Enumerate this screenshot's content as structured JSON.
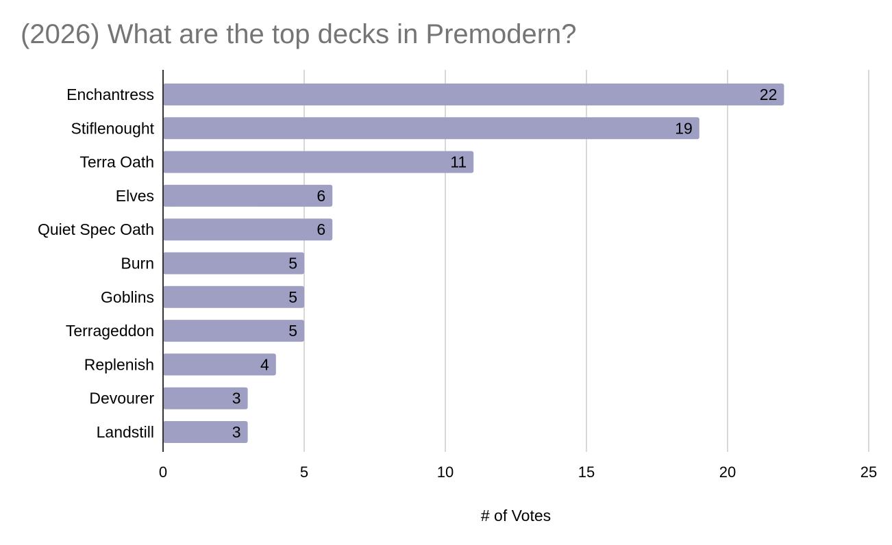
{
  "chart_data": {
    "type": "bar",
    "orientation": "horizontal",
    "title": "(2026) What are the top decks in Premodern?",
    "categories": [
      "Enchantress",
      "Stiflenought",
      "Terra Oath",
      "Elves",
      "Quiet Spec Oath",
      "Burn",
      "Goblins",
      "Terrageddon",
      "Replenish",
      "Devourer",
      "Landstill"
    ],
    "values": [
      22,
      19,
      11,
      6,
      6,
      5,
      5,
      5,
      4,
      3,
      3
    ],
    "xlabel": "# of Votes",
    "ylabel": "",
    "xlim": [
      0,
      25
    ],
    "xticks": [
      0,
      5,
      10,
      15,
      20,
      25
    ],
    "grid": true,
    "data_labels": true,
    "colors": {
      "bar": "#9f9fc4",
      "grid": "#cccccc",
      "axis": "#333333",
      "title": "#757575"
    }
  }
}
